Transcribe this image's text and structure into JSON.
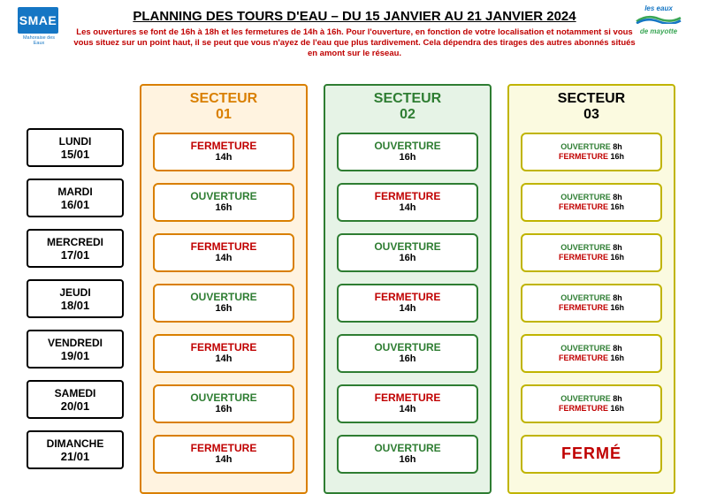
{
  "title": "PLANNING DES TOURS D'EAU – DU 15 JANVIER AU 21 JANVIER 2024",
  "subtitle": "Les ouvertures se font de 16h à 18h et les fermetures de 14h à 16h. Pour l'ouverture, en fonction de votre localisation et notamment si vous vous situez sur un point haut, il se peut que vous n'ayez de l'eau que plus tardivement. Cela dépendra des tirages des autres abonnés situés en amont sur le réseau.",
  "logo_left": {
    "text": "SMAE",
    "subtitle": "Mahoraise des Eaux",
    "bg": "#1576c4"
  },
  "logo_right": {
    "line1": "les eaux",
    "line2": "de mayotte",
    "color": "#1576c4"
  },
  "colors": {
    "red": "#c00000",
    "green": "#2e7d32",
    "sector1_border": "#d97f00",
    "sector1_bg": "#fff3e0",
    "sector2_border": "#2e7d32",
    "sector2_bg": "#e6f3e6",
    "sector3_border": "#c0b400",
    "sector3_bg": "#fbfae0"
  },
  "days": [
    {
      "name": "LUNDI",
      "date": "15/01"
    },
    {
      "name": "MARDI",
      "date": "16/01"
    },
    {
      "name": "MERCREDI",
      "date": "17/01"
    },
    {
      "name": "JEUDI",
      "date": "18/01"
    },
    {
      "name": "VENDREDI",
      "date": "19/01"
    },
    {
      "name": "SAMEDI",
      "date": "20/01"
    },
    {
      "name": "DIMANCHE",
      "date": "21/01"
    }
  ],
  "sectors": [
    {
      "label_l1": "SECTEUR",
      "label_l2": "01",
      "class": "col-orange",
      "slots": [
        {
          "mode": "single",
          "status": "FERMETURE",
          "status_class": "red",
          "time": "14h"
        },
        {
          "mode": "single",
          "status": "OUVERTURE",
          "status_class": "green",
          "time": "16h"
        },
        {
          "mode": "single",
          "status": "FERMETURE",
          "status_class": "red",
          "time": "14h"
        },
        {
          "mode": "single",
          "status": "OUVERTURE",
          "status_class": "green",
          "time": "16h"
        },
        {
          "mode": "single",
          "status": "FERMETURE",
          "status_class": "red",
          "time": "14h"
        },
        {
          "mode": "single",
          "status": "OUVERTURE",
          "status_class": "green",
          "time": "16h"
        },
        {
          "mode": "single",
          "status": "FERMETURE",
          "status_class": "red",
          "time": "14h"
        }
      ]
    },
    {
      "label_l1": "SECTEUR",
      "label_l2": "02",
      "class": "col-green2",
      "slots": [
        {
          "mode": "single",
          "status": "OUVERTURE",
          "status_class": "green",
          "time": "16h"
        },
        {
          "mode": "single",
          "status": "FERMETURE",
          "status_class": "red",
          "time": "14h"
        },
        {
          "mode": "single",
          "status": "OUVERTURE",
          "status_class": "green",
          "time": "16h"
        },
        {
          "mode": "single",
          "status": "FERMETURE",
          "status_class": "red",
          "time": "14h"
        },
        {
          "mode": "single",
          "status": "OUVERTURE",
          "status_class": "green",
          "time": "16h"
        },
        {
          "mode": "single",
          "status": "FERMETURE",
          "status_class": "red",
          "time": "14h"
        },
        {
          "mode": "single",
          "status": "OUVERTURE",
          "status_class": "green",
          "time": "16h"
        }
      ]
    },
    {
      "label_l1": "SECTEUR",
      "label_l2": "03",
      "class": "col-yellow",
      "slots": [
        {
          "mode": "double",
          "l1_status": "OUVERTURE",
          "l1_time": "8h",
          "l2_status": "FERMETURE",
          "l2_time": "16h"
        },
        {
          "mode": "double",
          "l1_status": "OUVERTURE",
          "l1_time": "8h",
          "l2_status": "FERMETURE",
          "l2_time": "16h"
        },
        {
          "mode": "double",
          "l1_status": "OUVERTURE",
          "l1_time": "8h",
          "l2_status": "FERMETURE",
          "l2_time": "16h"
        },
        {
          "mode": "double",
          "l1_status": "OUVERTURE",
          "l1_time": "8h",
          "l2_status": "FERMETURE",
          "l2_time": "16h"
        },
        {
          "mode": "double",
          "l1_status": "OUVERTURE",
          "l1_time": "8h",
          "l2_status": "FERMETURE",
          "l2_time": "16h"
        },
        {
          "mode": "double",
          "l1_status": "OUVERTURE",
          "l1_time": "8h",
          "l2_status": "FERMETURE",
          "l2_time": "16h"
        },
        {
          "mode": "closed",
          "text": "FERMÉ"
        }
      ]
    }
  ]
}
